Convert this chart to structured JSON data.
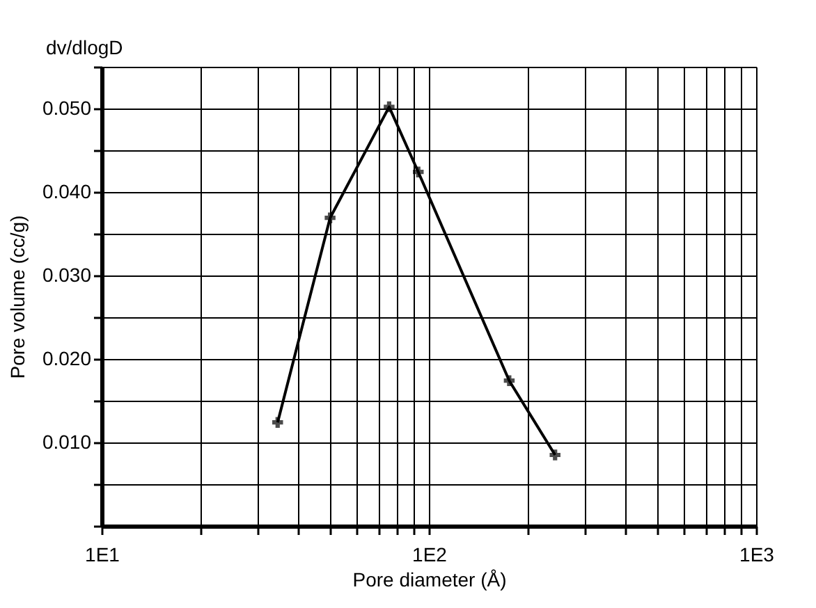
{
  "chart_data": {
    "type": "line",
    "xlabel": "Pore diameter (Å)",
    "ylabel": "Pore volume (cc/g)",
    "annotations": [
      "dv/dlogD"
    ],
    "x": [
      34.5,
      49.9,
      75.6,
      92.8,
      176,
      243
    ],
    "series": [
      {
        "color": "#000000",
        "values": [
          0.0124,
          0.0369,
          0.0502,
          0.0424,
          0.0174,
          0.0085
        ]
      }
    ],
    "log": "x",
    "grid": true,
    "marker": "cross",
    "line_style": "solid",
    "xlim": [
      10,
      1000
    ],
    "xticks": [
      {
        "value": 10,
        "label": "1E1"
      },
      {
        "value": 20,
        "label": null
      },
      {
        "value": 30,
        "label": null
      },
      {
        "value": 40,
        "label": null
      },
      {
        "value": 50,
        "label": null
      },
      {
        "value": 60,
        "label": null
      },
      {
        "value": 70,
        "label": null
      },
      {
        "value": 80,
        "label": null
      },
      {
        "value": 90,
        "label": null
      },
      {
        "value": 100,
        "label": "1E2"
      },
      {
        "value": 200,
        "label": null
      },
      {
        "value": 300,
        "label": null
      },
      {
        "value": 400,
        "label": null
      },
      {
        "value": 500,
        "label": null
      },
      {
        "value": 600,
        "label": null
      },
      {
        "value": 700,
        "label": null
      },
      {
        "value": 800,
        "label": null
      },
      {
        "value": 900,
        "label": null
      },
      {
        "value": 1000,
        "label": "1E3"
      }
    ],
    "ylim": [
      0,
      0.055
    ],
    "yticks": [
      {
        "value": 0,
        "label": null
      },
      {
        "value": 0.005,
        "label": null
      },
      {
        "value": 0.01,
        "label": "0.010"
      },
      {
        "value": 0.015,
        "label": null
      },
      {
        "value": 0.02,
        "label": "0.020"
      },
      {
        "value": 0.025,
        "label": null
      },
      {
        "value": 0.03,
        "label": "0.030"
      },
      {
        "value": 0.035,
        "label": null
      },
      {
        "value": 0.04,
        "label": "0.040"
      },
      {
        "value": 0.045,
        "label": null
      },
      {
        "value": 0.05,
        "label": "0.050"
      },
      {
        "value": 0.055,
        "label": null
      }
    ]
  }
}
